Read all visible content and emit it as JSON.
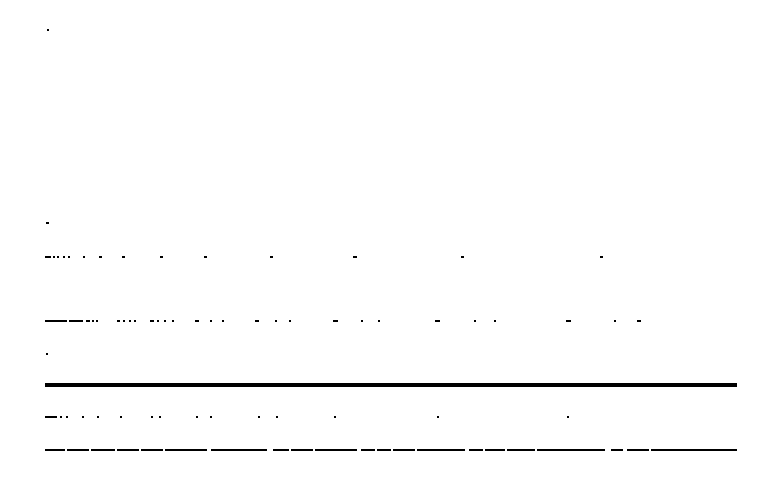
{
  "page": {
    "background_color": "#ffffff",
    "ink_color": "#000000"
  }
}
